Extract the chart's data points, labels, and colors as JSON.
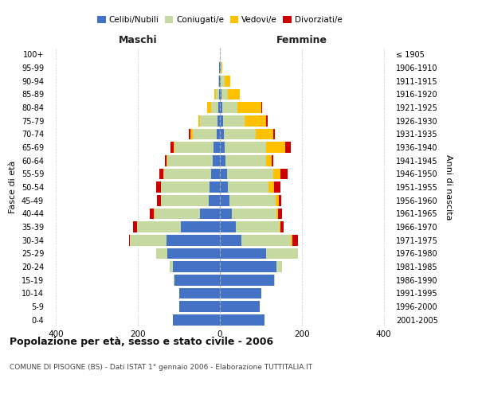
{
  "age_groups": [
    "0-4",
    "5-9",
    "10-14",
    "15-19",
    "20-24",
    "25-29",
    "30-34",
    "35-39",
    "40-44",
    "45-49",
    "50-54",
    "55-59",
    "60-64",
    "65-69",
    "70-74",
    "75-79",
    "80-84",
    "85-89",
    "90-94",
    "95-99",
    "100+"
  ],
  "birth_years": [
    "2001-2005",
    "1996-2000",
    "1991-1995",
    "1986-1990",
    "1981-1985",
    "1976-1980",
    "1971-1975",
    "1966-1970",
    "1961-1965",
    "1956-1960",
    "1951-1955",
    "1946-1950",
    "1941-1945",
    "1936-1940",
    "1931-1935",
    "1926-1930",
    "1921-1925",
    "1916-1920",
    "1911-1915",
    "1906-1910",
    "≤ 1905"
  ],
  "males_celibe": [
    115,
    100,
    100,
    110,
    115,
    128,
    130,
    95,
    48,
    28,
    25,
    22,
    18,
    15,
    8,
    5,
    3,
    2,
    1,
    1,
    0
  ],
  "males_coniugato": [
    0,
    0,
    0,
    2,
    8,
    28,
    90,
    108,
    112,
    115,
    118,
    115,
    110,
    95,
    58,
    43,
    18,
    7,
    2,
    0,
    0
  ],
  "males_vedovo": [
    0,
    0,
    0,
    0,
    0,
    0,
    0,
    0,
    1,
    1,
    1,
    1,
    2,
    2,
    5,
    5,
    10,
    4,
    1,
    0,
    0
  ],
  "males_divorziato": [
    0,
    0,
    0,
    0,
    0,
    0,
    2,
    9,
    11,
    9,
    11,
    9,
    4,
    8,
    4,
    0,
    0,
    0,
    0,
    0,
    0
  ],
  "females_nubile": [
    108,
    98,
    102,
    132,
    138,
    112,
    52,
    38,
    30,
    24,
    20,
    18,
    14,
    12,
    10,
    8,
    5,
    4,
    2,
    1,
    0
  ],
  "females_coniugata": [
    0,
    0,
    0,
    2,
    14,
    78,
    122,
    108,
    108,
    112,
    98,
    112,
    98,
    100,
    78,
    52,
    38,
    16,
    10,
    2,
    0
  ],
  "females_vedova": [
    0,
    0,
    0,
    0,
    0,
    0,
    2,
    2,
    4,
    7,
    14,
    18,
    14,
    48,
    42,
    52,
    58,
    28,
    14,
    2,
    0
  ],
  "females_divorziata": [
    0,
    0,
    0,
    0,
    0,
    0,
    14,
    7,
    9,
    7,
    16,
    18,
    4,
    14,
    4,
    4,
    2,
    0,
    0,
    0,
    0
  ],
  "colors": {
    "celibe": "#4472c4",
    "coniugato": "#c5d9a0",
    "vedovo": "#ffc000",
    "divorziato": "#cc0000"
  },
  "title": "Popolazione per età, sesso e stato civile - 2006",
  "subtitle": "COMUNE DI PISOGNE (BS) - Dati ISTAT 1° gennaio 2006 - Elaborazione TUTTITALIA.IT",
  "xlabel_left": "Maschi",
  "xlabel_right": "Femmine",
  "ylabel_left": "Fasce di età",
  "ylabel_right": "Anni di nascita",
  "legend_labels": [
    "Celibi/Nubili",
    "Coniugati/e",
    "Vedovi/e",
    "Divorziati/e"
  ],
  "xlim": 420,
  "bg_color": "#ffffff",
  "grid_color": "#cccccc"
}
